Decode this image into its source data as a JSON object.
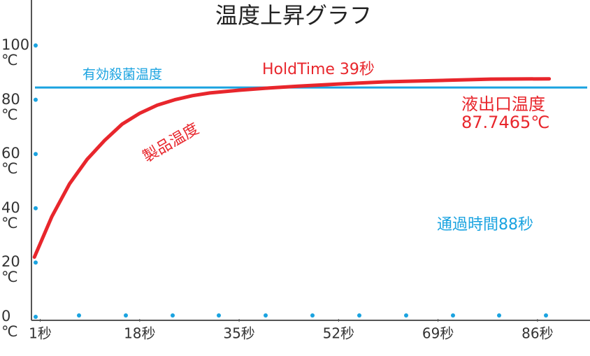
{
  "chart_data": {
    "type": "line",
    "title": "温度上昇グラフ",
    "x": [
      0,
      3,
      6,
      9,
      12,
      15,
      18,
      21,
      24,
      27,
      30,
      35,
      40,
      45,
      52,
      60,
      69,
      78,
      88
    ],
    "series": [
      {
        "name": "製品温度",
        "color": "#e8262c",
        "values": [
          22,
          37,
          49,
          58,
          65,
          71,
          75,
          78,
          80,
          81.5,
          82.5,
          83.5,
          84.3,
          85,
          85.8,
          86.6,
          87.1,
          87.6,
          87.7
        ]
      }
    ],
    "threshold": {
      "value": 84.5,
      "label": "有効殺菌温度",
      "color": "#1aa3e0"
    },
    "annotations": [
      "HoldTime 39秒",
      "液出口温度",
      "87.7465℃",
      "通過時間88秒"
    ],
    "xlim": [
      -0.5,
      94.5
    ],
    "xticks": [
      {
        "value": 1,
        "label": "1秒"
      },
      {
        "value": 18,
        "label": "18秒"
      },
      {
        "value": 35,
        "label": "35秒"
      },
      {
        "value": 52,
        "label": "52秒"
      },
      {
        "value": 69,
        "label": "69秒"
      },
      {
        "value": 86,
        "label": "86秒"
      }
    ],
    "ylim": [
      0,
      100
    ],
    "yticks": [
      {
        "value": 0,
        "label": "0\n℃"
      },
      {
        "value": 20,
        "label": "20\n℃"
      },
      {
        "value": 40,
        "label": "40\n℃"
      },
      {
        "value": 60,
        "label": "60\n℃"
      },
      {
        "value": 80,
        "label": "80\n℃"
      },
      {
        "value": 100,
        "label": "100\n℃"
      }
    ]
  }
}
